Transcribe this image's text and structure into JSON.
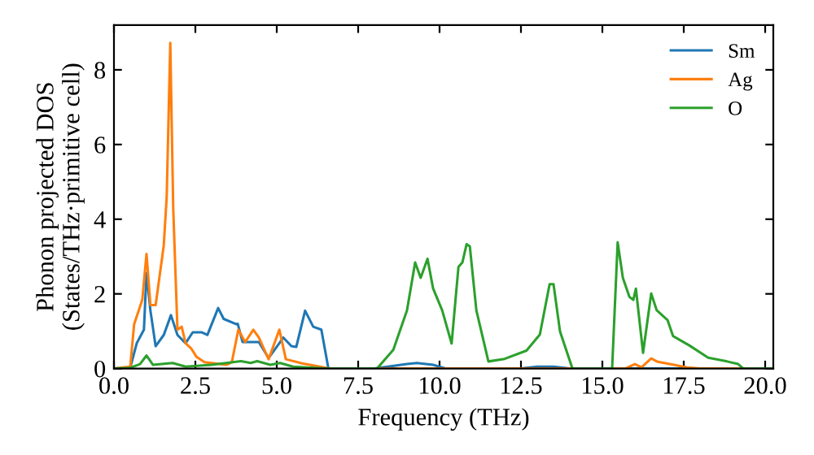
{
  "chart_data": {
    "type": "line",
    "xlabel": "Frequency (THz)",
    "ylabel": "Phonon projected DOS\n(States/THz·primitive cell)",
    "xlim": [
      0,
      20.25
    ],
    "ylim": [
      0,
      9.2
    ],
    "xticks": [
      {
        "value": 0,
        "label": "0.0"
      },
      2.5,
      {
        "value": 5,
        "label": "5.0"
      },
      7.5,
      {
        "value": 10,
        "label": "10.0"
      },
      12.5,
      {
        "value": 15,
        "label": "15.0"
      },
      17.5,
      {
        "value": 20,
        "label": "20.0"
      }
    ],
    "yticks": [
      0,
      2,
      4,
      6,
      8
    ],
    "grid": false,
    "legend": "top right",
    "marker": "none",
    "line_style": "solid",
    "series": [
      {
        "name": "Sm",
        "color": "#1f77b4",
        "x": [
          0,
          0.5,
          0.7,
          0.92,
          1.0,
          1.12,
          1.28,
          1.53,
          1.75,
          1.95,
          2.2,
          2.42,
          2.7,
          2.87,
          3.2,
          3.37,
          3.75,
          3.8,
          3.95,
          4.45,
          4.75,
          5.08,
          5.2,
          5.45,
          5.6,
          5.87,
          6.12,
          6.37,
          6.58,
          6.7,
          8.0,
          9.0,
          9.3,
          9.8,
          10.2,
          12.5,
          13.0,
          13.5,
          14.0,
          20.25
        ],
        "values": [
          0,
          0.02,
          0.68,
          1.04,
          2.56,
          1.55,
          0.6,
          0.9,
          1.43,
          0.9,
          0.68,
          0.97,
          0.97,
          0.9,
          1.62,
          1.33,
          1.19,
          1.2,
          0.71,
          0.71,
          0.28,
          0.68,
          0.83,
          0.6,
          0.58,
          1.55,
          1.12,
          1.04,
          0.03,
          0,
          0,
          0.12,
          0.15,
          0.1,
          0,
          0,
          0.05,
          0.05,
          0,
          0
        ]
      },
      {
        "name": "Ag",
        "color": "#ff7f0e",
        "x": [
          0,
          0.5,
          0.62,
          0.87,
          1.0,
          1.12,
          1.28,
          1.53,
          1.62,
          1.73,
          1.82,
          1.95,
          2.08,
          2.2,
          2.37,
          2.53,
          2.78,
          3.45,
          3.62,
          3.82,
          4.03,
          4.28,
          4.45,
          4.75,
          5.08,
          5.28,
          5.78,
          6.45,
          6.6,
          15.7,
          16.0,
          16.2,
          16.5,
          16.7,
          17.2,
          17.6,
          18.0,
          20.25
        ],
        "values": [
          0,
          0.05,
          1.19,
          1.84,
          3.07,
          1.7,
          1.7,
          3.3,
          4.6,
          8.72,
          4.3,
          1.04,
          1.12,
          0.68,
          0.54,
          0.32,
          0.17,
          0.1,
          0.17,
          1.04,
          0.71,
          1.04,
          0.83,
          0.25,
          1.04,
          0.25,
          0.14,
          0.03,
          0,
          0,
          0.12,
          0.03,
          0.27,
          0.18,
          0.1,
          0.03,
          0,
          0
        ]
      },
      {
        "name": "O",
        "color": "#2ca02c",
        "x": [
          0,
          0.5,
          0.8,
          1.0,
          1.2,
          1.8,
          2.2,
          3.0,
          3.9,
          4.2,
          4.4,
          4.8,
          5.1,
          5.5,
          6.5,
          8.08,
          8.58,
          9.0,
          9.25,
          9.42,
          9.63,
          9.8,
          10.08,
          10.37,
          10.58,
          10.7,
          10.83,
          10.93,
          11.13,
          11.5,
          12.0,
          12.67,
          13.08,
          13.38,
          13.5,
          13.7,
          14.08,
          15.3,
          15.47,
          15.63,
          15.83,
          15.95,
          16.03,
          16.25,
          16.5,
          16.67,
          17.0,
          17.17,
          17.67,
          18.25,
          18.83,
          19.17,
          19.33,
          20.25
        ],
        "values": [
          0,
          0.02,
          0.12,
          0.35,
          0.1,
          0.15,
          0.05,
          0.1,
          0.2,
          0.15,
          0.2,
          0.1,
          0.15,
          0.05,
          0,
          0,
          0.5,
          1.56,
          2.84,
          2.43,
          2.94,
          2.15,
          1.56,
          0.67,
          2.72,
          2.84,
          3.33,
          3.27,
          1.56,
          0.19,
          0.26,
          0.48,
          0.91,
          2.26,
          2.26,
          0.99,
          0,
          0,
          3.38,
          2.43,
          1.92,
          1.84,
          2.14,
          0.42,
          2.01,
          1.56,
          1.3,
          0.87,
          0.62,
          0.29,
          0.19,
          0.12,
          0,
          0
        ]
      }
    ]
  }
}
